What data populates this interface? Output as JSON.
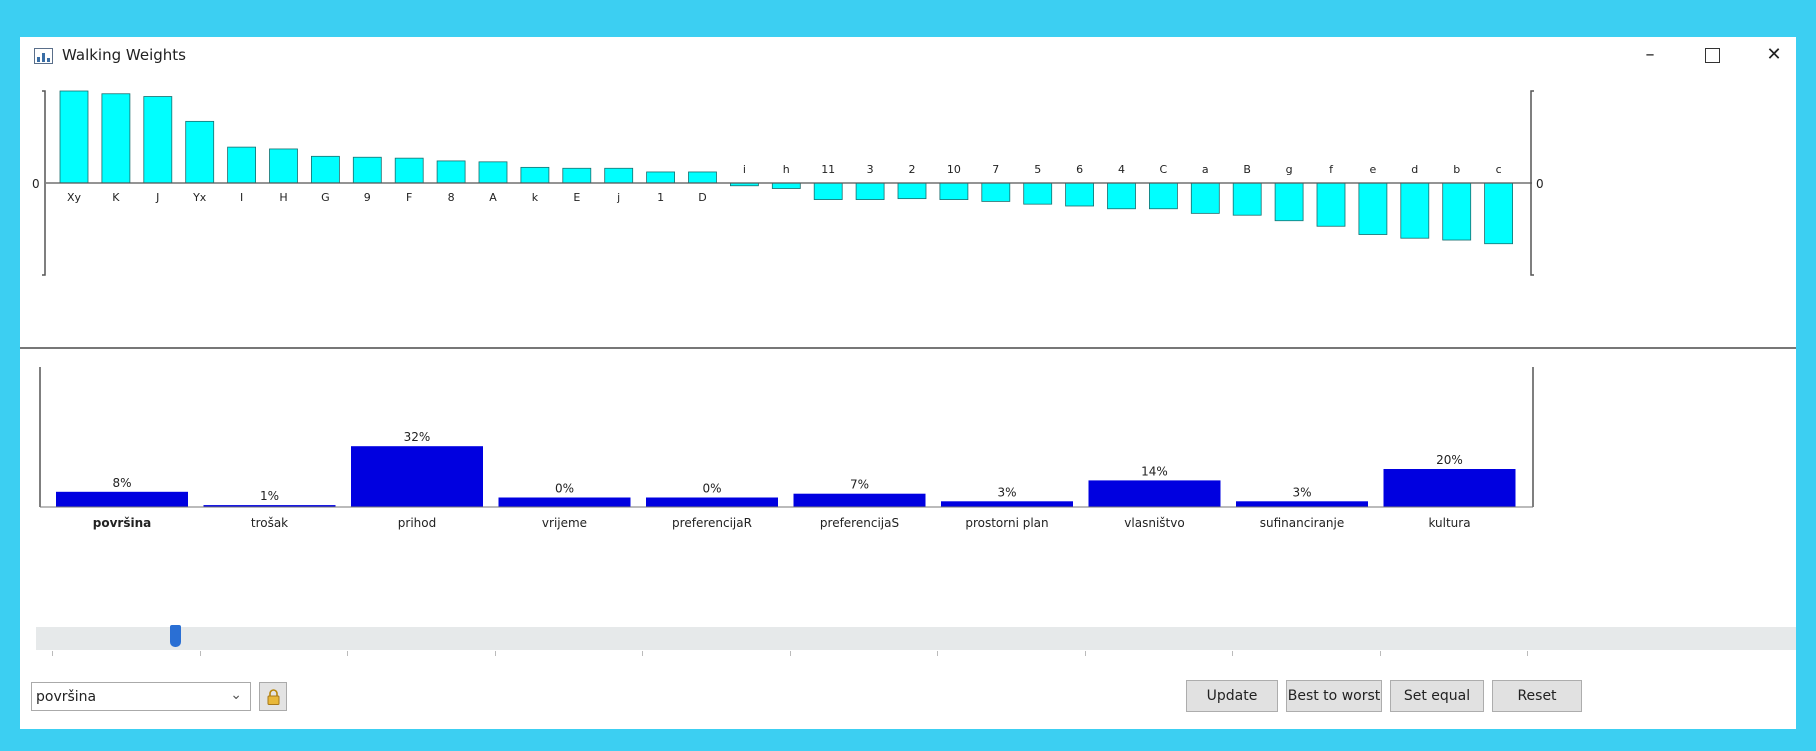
{
  "window": {
    "title": "Walking Weights",
    "minimize_glyph": "–",
    "close_glyph": "✕",
    "app_icon": "chart-app-icon"
  },
  "chart_data": [
    {
      "type": "bar",
      "title": "",
      "zero_label_left": "0",
      "zero_label_right": "0",
      "categories": [
        "Xy",
        "K",
        "J",
        "Yx",
        "I",
        "H",
        "G",
        "9",
        "F",
        "8",
        "A",
        "k",
        "E",
        "j",
        "1",
        "D",
        "i",
        "h",
        "11",
        "3",
        "2",
        "10",
        "7",
        "5",
        "6",
        "4",
        "C",
        "a",
        "B",
        "g",
        "f",
        "e",
        "d",
        "b",
        "c"
      ],
      "values": [
        1.0,
        0.97,
        0.94,
        0.67,
        0.39,
        0.37,
        0.29,
        0.28,
        0.27,
        0.24,
        0.23,
        0.17,
        0.16,
        0.16,
        0.12,
        0.12,
        -0.03,
        -0.06,
        -0.18,
        -0.18,
        -0.17,
        -0.18,
        -0.2,
        -0.23,
        -0.25,
        -0.28,
        -0.28,
        -0.33,
        -0.35,
        -0.41,
        -0.47,
        -0.56,
        -0.6,
        -0.62,
        -0.66
      ],
      "ylim": [
        -1,
        1
      ],
      "bar_color": "#00ffff",
      "grid": false
    },
    {
      "type": "bar",
      "title": "",
      "categories": [
        "površina",
        "trošak",
        "prihod",
        "vrijeme",
        "preferencijaR",
        "preferencijaS",
        "prostorni plan",
        "vlasništvo",
        "sufinanciranje",
        "kultura"
      ],
      "values": [
        8,
        1,
        32,
        0,
        0,
        7,
        3,
        14,
        3,
        20
      ],
      "value_labels": [
        "8%",
        "1%",
        "32%",
        "0%",
        "0%",
        "7%",
        "3%",
        "14%",
        "3%",
        "20%"
      ],
      "bar_heights": [
        8,
        1,
        32,
        5,
        5,
        7,
        3,
        14,
        3,
        20
      ],
      "selected_index": 0,
      "ylim": [
        0,
        100
      ],
      "bar_color": "#0000e0",
      "grid": false
    }
  ],
  "slider": {
    "value_fraction": 0.08
  },
  "controls": {
    "criterion_select_value": "površina",
    "chevron_glyph": "⌄",
    "update_label": "Update",
    "best_to_worst_label": "Best to worst",
    "set_equal_label": "Set equal",
    "reset_label": "Reset"
  },
  "icons": {
    "dropdown": "chevron-down-icon",
    "lock": "lock-icon"
  }
}
